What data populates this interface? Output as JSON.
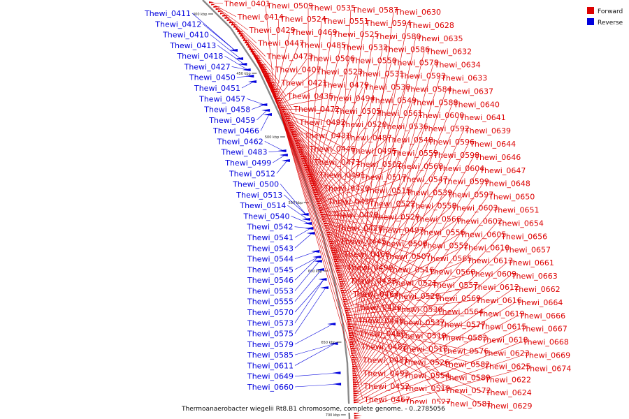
{
  "colors": {
    "forward": "#dd0000",
    "reverse": "#0000dd",
    "backbone": "#888888"
  },
  "legend": {
    "forward_label": "Forward",
    "reverse_label": "Reverse"
  },
  "caption": "Thermoanaerobacter wiegelii Rt8.B1 chromosome, complete genome. - 0..2785056",
  "ticks": [
    "400 kbp",
    "450 kbp",
    "500 kbp",
    "550 kbp",
    "600 kbp",
    "650 kbp",
    "700 kbp"
  ],
  "forward_genes": [
    "Thewi_0401",
    "Thewi_0414",
    "Thewi_0429",
    "Thewi_0447",
    "Thewi_0473",
    "Thewi_0407",
    "Thewi_0421",
    "Thewi_0435",
    "Thewi_0472",
    "Thewi_0492",
    "Thewi_0431",
    "Thewi_0446",
    "Thewi_0471",
    "Thewi_0491",
    "Thewi_0420",
    "Thewi_0437",
    "Thewi_0470",
    "Thewi_0428",
    "Thewi_0445",
    "Thewi_0468",
    "Thewi_0490",
    "Thewi_0433",
    "Thewi_0464",
    "Thewi_0486",
    "Thewi_0440",
    "Thewi_0460",
    "Thewi_0482",
    "Thewi_0481",
    "Thewi_0493",
    "Thewi_0452",
    "Thewi_0467",
    "Thewi_0509",
    "Thewi_0524",
    "Thewi_0469",
    "Thewi_0485",
    "Thewi_0506",
    "Thewi_0523",
    "Thewi_0479",
    "Thewi_0494",
    "Thewi_0505",
    "Thewi_0520",
    "Thewi_0487",
    "Thewi_0495",
    "Thewi_0502",
    "Thewi_0517",
    "Thewi_0515",
    "Thewi_0522",
    "Thewi_0529",
    "Thewi_0497",
    "Thewi_0508",
    "Thewi_0507",
    "Thewi_0516",
    "Thewi_0521",
    "Thewi_0528",
    "Thewi_0530",
    "Thewi_0537",
    "Thewi_0510",
    "Thewi_0518",
    "Thewi_0526",
    "Thewi_0554",
    "Thewi_0519",
    "Thewi_0527",
    "Thewi_0535",
    "Thewi_0551",
    "Thewi_0525",
    "Thewi_0532",
    "Thewi_0550",
    "Thewi_0531",
    "Thewi_0538",
    "Thewi_0549",
    "Thewi_0561",
    "Thewi_0536",
    "Thewi_0548",
    "Thewi_0559",
    "Thewi_0568",
    "Thewi_0547",
    "Thewi_0539",
    "Thewi_0558",
    "Thewi_0566",
    "Thewi_0556",
    "Thewi_0552",
    "Thewi_0565",
    "Thewi_0560",
    "Thewi_0557",
    "Thewi_0569",
    "Thewi_0564",
    "Thewi_0577",
    "Thewi_0583",
    "Thewi_0576",
    "Thewi_0582",
    "Thewi_0589",
    "Thewi_0572",
    "Thewi_0581",
    "Thewi_0587",
    "Thewi_0594",
    "Thewi_0580",
    "Thewi_0586",
    "Thewi_0578",
    "Thewi_0593",
    "Thewi_0584",
    "Thewi_0588",
    "Thewi_0600",
    "Thewi_0592",
    "Thewi_0596",
    "Thewi_0598",
    "Thewi_0604",
    "Thewi_0599",
    "Thewi_0597",
    "Thewi_0603",
    "Thewi_0602",
    "Thewi_0605",
    "Thewi_0610",
    "Thewi_0613",
    "Thewi_0609",
    "Thewi_0612",
    "Thewi_0616",
    "Thewi_0619",
    "Thewi_0615",
    "Thewi_0618",
    "Thewi_0623",
    "Thewi_0625",
    "Thewi_0622",
    "Thewi_0624",
    "Thewi_0629",
    "Thewi_0630",
    "Thewi_0628",
    "Thewi_0635",
    "Thewi_0632",
    "Thewi_0634",
    "Thewi_0633",
    "Thewi_0637",
    "Thewi_0640",
    "Thewi_0641",
    "Thewi_0639",
    "Thewi_0644",
    "Thewi_0646",
    "Thewi_0647",
    "Thewi_0648",
    "Thewi_0650",
    "Thewi_0651",
    "Thewi_0654",
    "Thewi_0656",
    "Thewi_0657",
    "Thewi_0661",
    "Thewi_0663",
    "Thewi_0662",
    "Thewi_0664",
    "Thewi_0666",
    "Thewi_0667",
    "Thewi_0668",
    "Thewi_0669",
    "Thewi_0674"
  ],
  "reverse_genes": [
    "Thewi_0411",
    "Thewi_0412",
    "Thewi_0410",
    "Thewi_0413",
    "Thewi_0418",
    "Thewi_0427",
    "Thewi_0450",
    "Thewi_0451",
    "Thewi_0457",
    "Thewi_0458",
    "Thewi_0459",
    "Thewi_0466",
    "Thewi_0462",
    "Thewi_0483",
    "Thewi_0499",
    "Thewi_0512",
    "Thewi_0500",
    "Thewi_0513",
    "Thewi_0514",
    "Thewi_0540",
    "Thewi_0542",
    "Thewi_0541",
    "Thewi_0543",
    "Thewi_0544",
    "Thewi_0545",
    "Thewi_0546",
    "Thewi_0553",
    "Thewi_0555",
    "Thewi_0570",
    "Thewi_0573",
    "Thewi_0575",
    "Thewi_0579",
    "Thewi_0585",
    "Thewi_0611",
    "Thewi_0649",
    "Thewi_0660"
  ]
}
